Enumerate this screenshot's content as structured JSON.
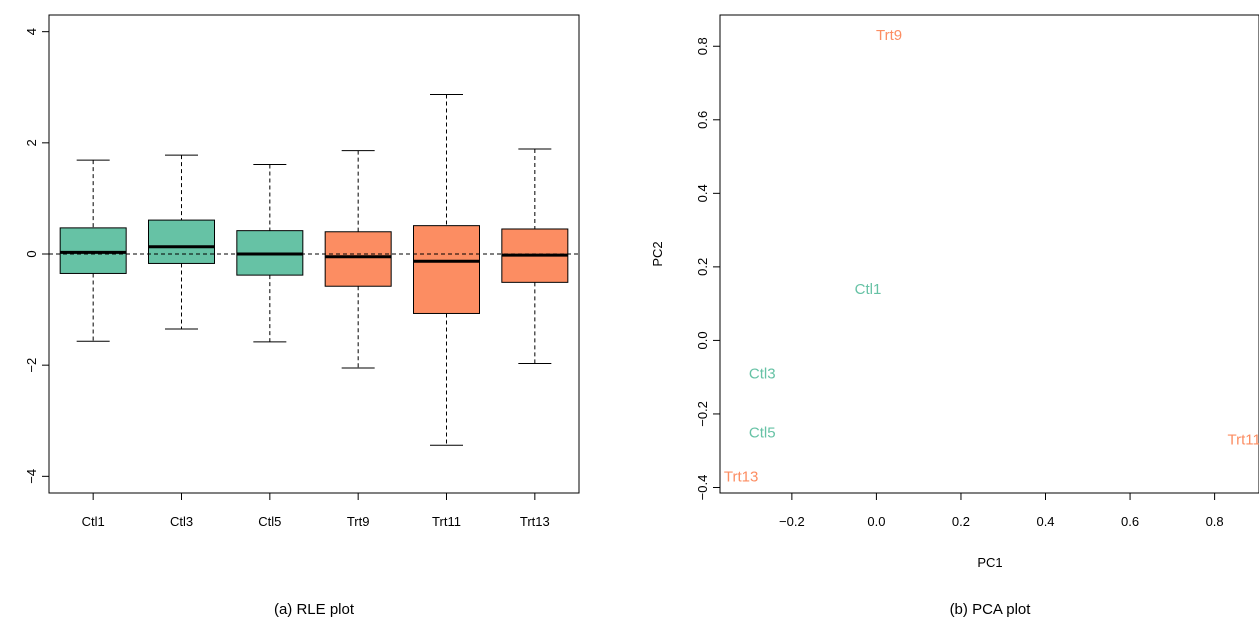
{
  "colors": {
    "control": "#66C2A5",
    "treatment": "#FC8D62"
  },
  "chart_data": [
    {
      "type": "box",
      "caption": "(a) RLE plot",
      "categories": [
        "Ctl1",
        "Ctl3",
        "Ctl5",
        "Trt9",
        "Trt11",
        "Trt13"
      ],
      "groups": [
        "control",
        "control",
        "control",
        "treatment",
        "treatment",
        "treatment"
      ],
      "boxes": [
        {
          "whisker_low": -1.57,
          "q1": -0.35,
          "median": 0.03,
          "q3": 0.47,
          "whisker_high": 1.69
        },
        {
          "whisker_low": -1.35,
          "q1": -0.17,
          "median": 0.13,
          "q3": 0.61,
          "whisker_high": 1.78
        },
        {
          "whisker_low": -1.58,
          "q1": -0.38,
          "median": 0.0,
          "q3": 0.42,
          "whisker_high": 1.61
        },
        {
          "whisker_low": -2.05,
          "q1": -0.58,
          "median": -0.05,
          "q3": 0.4,
          "whisker_high": 1.86
        },
        {
          "whisker_low": -3.44,
          "q1": -1.07,
          "median": -0.13,
          "q3": 0.51,
          "whisker_high": 2.87
        },
        {
          "whisker_low": -1.97,
          "q1": -0.51,
          "median": -0.02,
          "q3": 0.45,
          "whisker_high": 1.89
        }
      ],
      "ylim": [
        -4.3,
        4.3
      ],
      "yticks": [
        -4,
        -2,
        0,
        2,
        4
      ],
      "ytick_labels": [
        "−4",
        "−2",
        "0",
        "2",
        "4"
      ],
      "reference_line": 0,
      "xlabel": "",
      "ylabel": ""
    },
    {
      "type": "scatter",
      "caption": "(b) PCA plot",
      "points": [
        {
          "label": "Trt9",
          "x": 0.03,
          "y": 0.83,
          "group": "treatment"
        },
        {
          "label": "Ctl1",
          "x": -0.02,
          "y": 0.14,
          "group": "control"
        },
        {
          "label": "Ctl3",
          "x": -0.27,
          "y": -0.09,
          "group": "control"
        },
        {
          "label": "Ctl5",
          "x": -0.27,
          "y": -0.25,
          "group": "control"
        },
        {
          "label": "Trt11",
          "x": 0.87,
          "y": -0.27,
          "group": "treatment"
        },
        {
          "label": "Trt13",
          "x": -0.32,
          "y": -0.37,
          "group": "treatment"
        }
      ],
      "xlim": [
        -0.37,
        0.905
      ],
      "ylim": [
        -0.415,
        0.885
      ],
      "xticks": [
        -0.2,
        0.0,
        0.2,
        0.4,
        0.6,
        0.8
      ],
      "xtick_labels": [
        "−0.2",
        "0.0",
        "0.2",
        "0.4",
        "0.6",
        "0.8"
      ],
      "yticks": [
        -0.4,
        -0.2,
        0.0,
        0.2,
        0.4,
        0.6,
        0.8
      ],
      "ytick_labels": [
        "−0.4",
        "−0.2",
        "0.0",
        "0.2",
        "0.4",
        "0.6",
        "0.8"
      ],
      "xlabel": "PC1",
      "ylabel": "PC2"
    }
  ]
}
